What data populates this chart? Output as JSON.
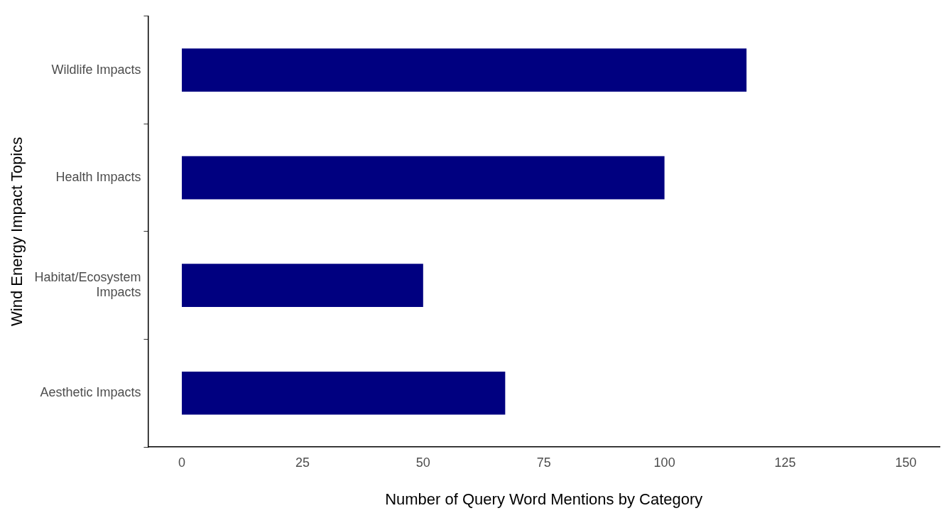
{
  "chart_data": {
    "type": "bar",
    "orientation": "horizontal",
    "xlabel": "Number of Query Word Mentions by Category",
    "ylabel": "Wind Energy Impact Topics",
    "categories": [
      "Wildlife Impacts",
      "Health Impacts",
      "Habitat/Ecosystem\nImpacts",
      "Aesthetic Impacts"
    ],
    "values": [
      117,
      100,
      50,
      67
    ],
    "color": "#000080",
    "xlim": [
      -7,
      157
    ],
    "xticks": [
      0,
      25,
      50,
      75,
      100,
      125,
      150
    ],
    "grid": false,
    "legend": false
  }
}
